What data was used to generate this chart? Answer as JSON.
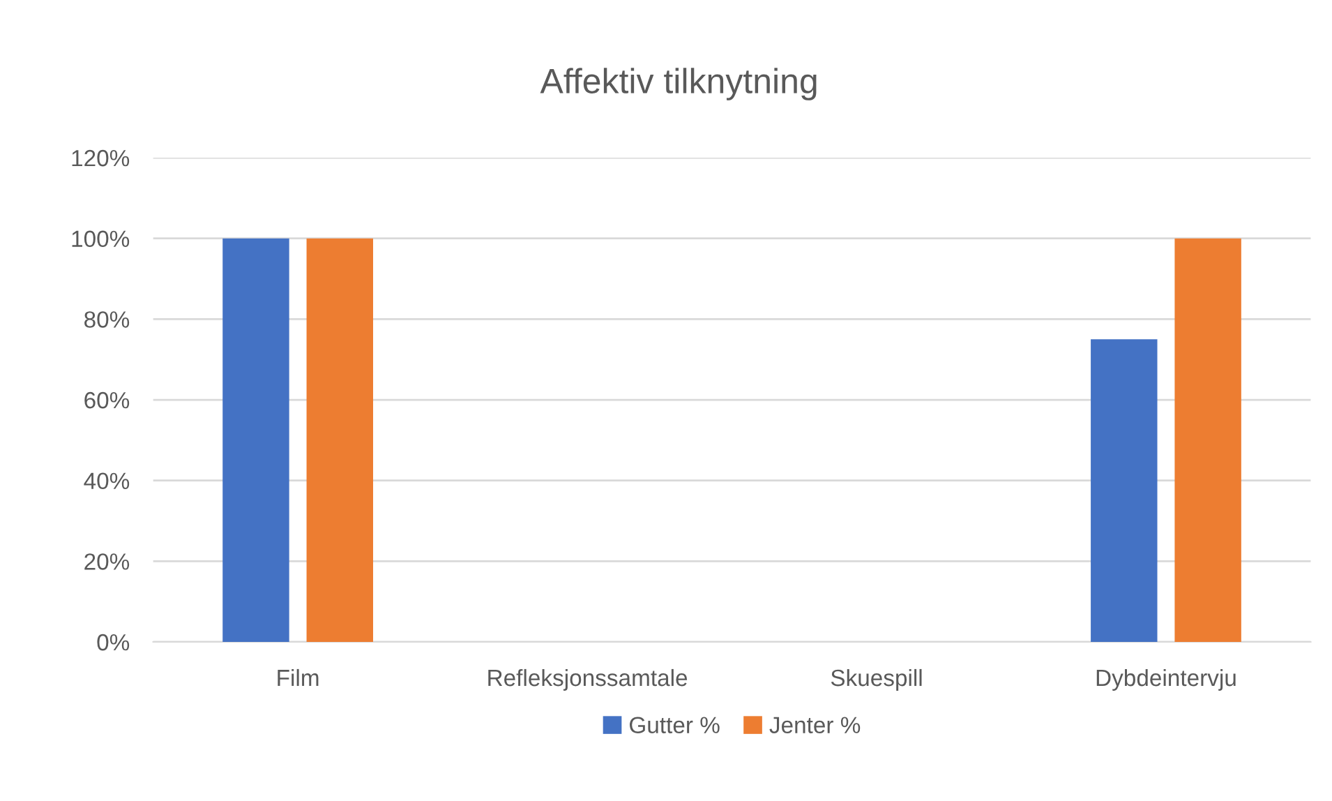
{
  "chart_data": {
    "type": "bar",
    "title": "Affektiv tilknytning",
    "categories": [
      "Film",
      "Refleksjonssamtale",
      "Skuespill",
      "Dybdeintervju"
    ],
    "series": [
      {
        "name": "Gutter %",
        "color": "#4472c4",
        "values": [
          100,
          0,
          0,
          75
        ]
      },
      {
        "name": "Jenter %",
        "color": "#ed7d31",
        "values": [
          100,
          0,
          0,
          100
        ]
      }
    ],
    "ylim": [
      0,
      120
    ],
    "yticks": [
      {
        "value": 0,
        "label": "0%"
      },
      {
        "value": 20,
        "label": "20%"
      },
      {
        "value": 40,
        "label": "40%"
      },
      {
        "value": 60,
        "label": "60%"
      },
      {
        "value": 80,
        "label": "80%"
      },
      {
        "value": 100,
        "label": "100%"
      },
      {
        "value": 120,
        "label": "120%"
      }
    ],
    "grid": "y",
    "legend": "bottom"
  }
}
